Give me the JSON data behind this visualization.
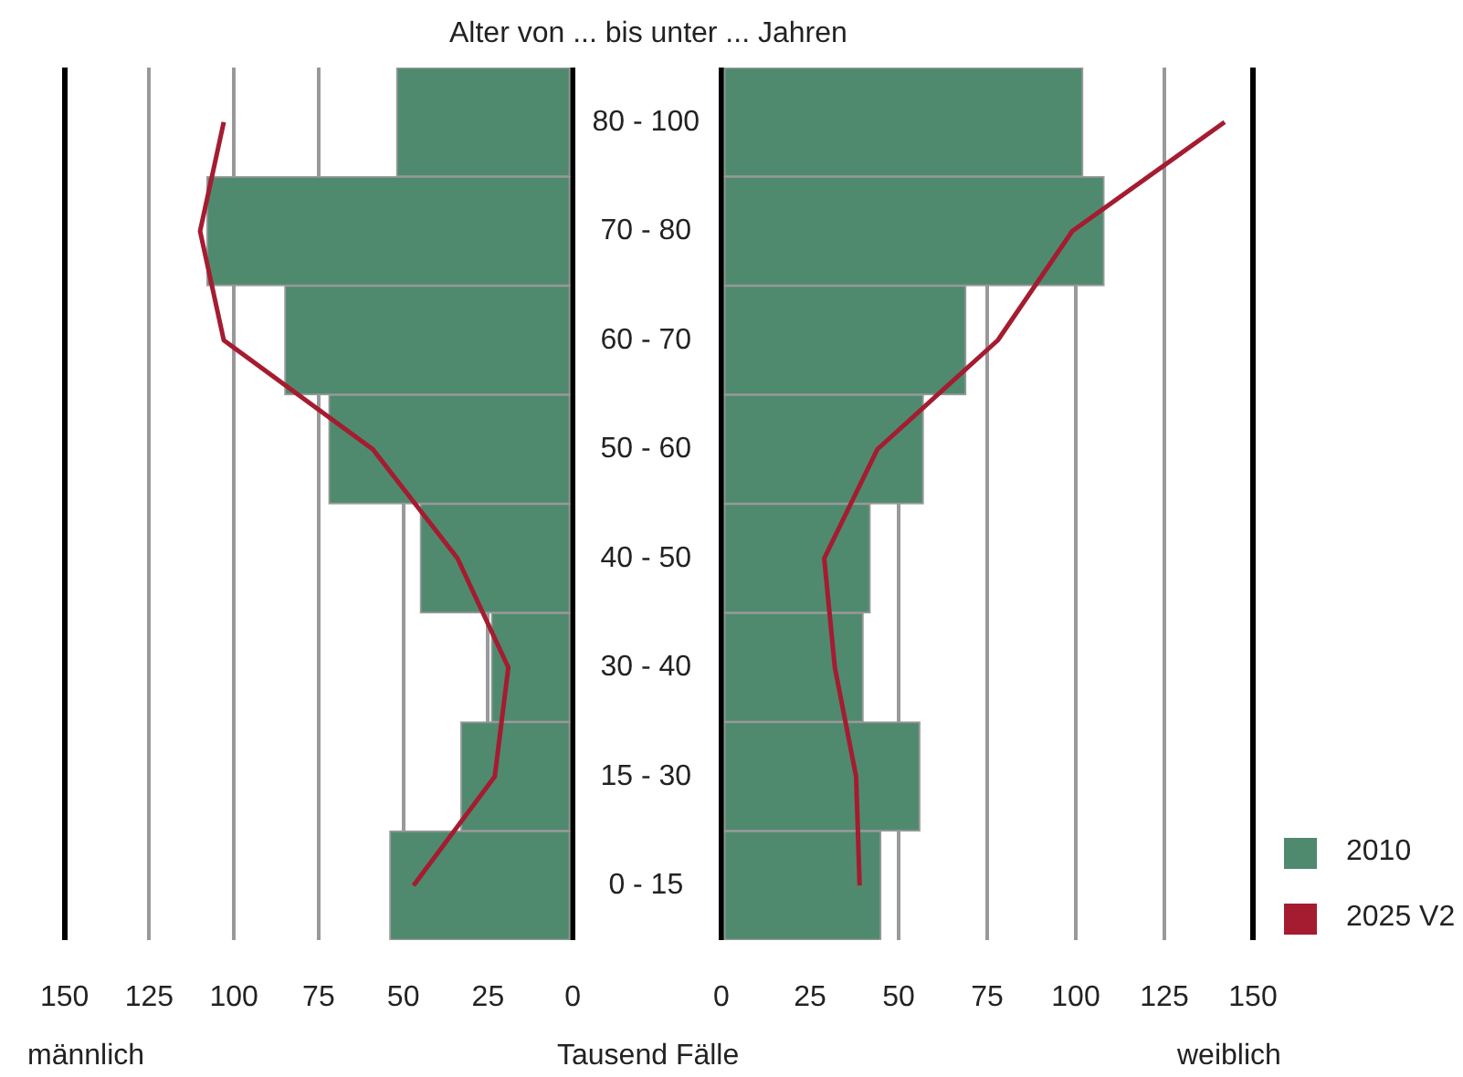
{
  "chart_data": [
    {
      "type": "bar",
      "orientation": "horizontal",
      "xlabel": "männlich",
      "annotations": [
        "Tausend Fälle"
      ],
      "categories": [
        null,
        null,
        null,
        null,
        null,
        null,
        null,
        null
      ],
      "series": [
        {
          "color": "#4f8a6f",
          "values": [
            52,
            108,
            85,
            72,
            45,
            24,
            33,
            54
          ]
        },
        {
          "type": "line",
          "color": "#a51c30",
          "values": [
            103,
            110,
            103,
            59,
            34,
            19,
            23,
            47
          ]
        }
      ],
      "xlim": [
        150,
        0
      ],
      "xticks": [
        150,
        125,
        100,
        75,
        50,
        25,
        0
      ],
      "grid": "x",
      "tick_labels": "x",
      "marker": "none",
      "line_style": "solid"
    },
    {
      "type": "bar",
      "orientation": "horizontal",
      "xlabel": "weiblich",
      "ylabel": "Alter von ... bis unter ... Jahren",
      "categories": [
        "80 - 100",
        "70 - 80",
        "60 - 70",
        "50 - 60",
        "40 - 50",
        "30 - 40",
        "15 - 30",
        "0 - 15"
      ],
      "series": [
        {
          "name": "2010",
          "color": "#4f8a6f",
          "values": [
            102,
            108,
            69,
            57,
            42,
            40,
            56,
            45
          ]
        },
        {
          "type": "line",
          "name": "2025 V2",
          "color": "#a51c30",
          "values": [
            142,
            99,
            78,
            44,
            29,
            32,
            38,
            39
          ]
        }
      ],
      "xlim": [
        0,
        150
      ],
      "xticks": [
        0,
        25,
        50,
        75,
        100,
        125,
        150
      ],
      "grid": "x",
      "legend": "bottom right",
      "marker": "none",
      "line_style": "solid"
    }
  ]
}
